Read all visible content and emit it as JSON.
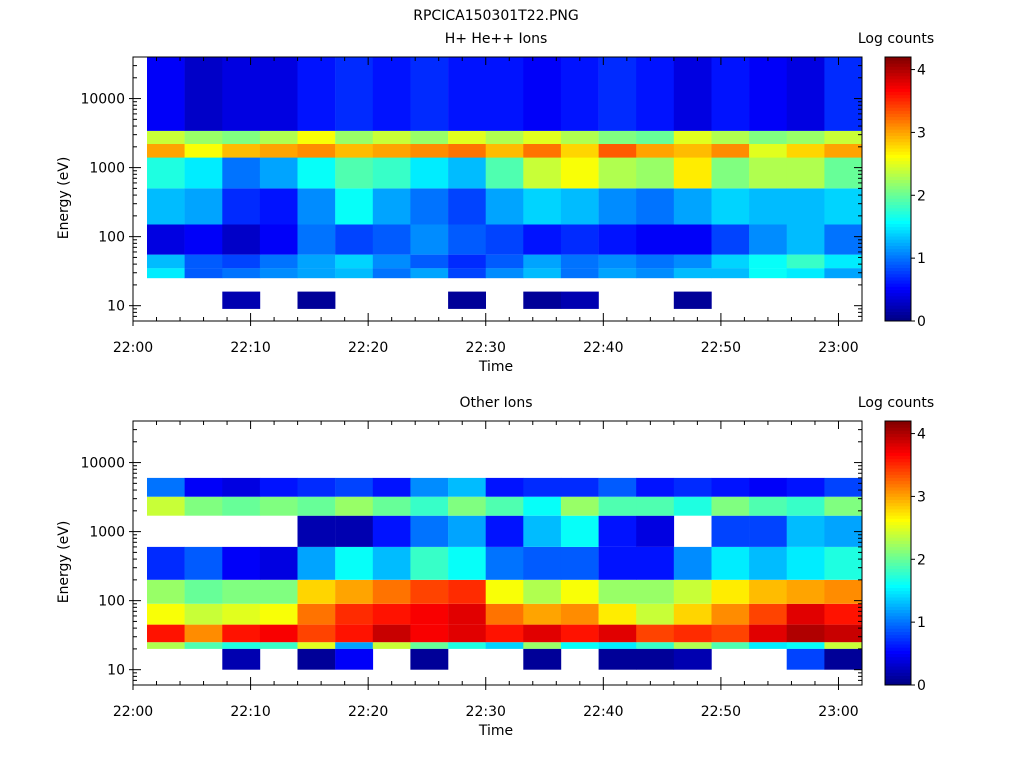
{
  "figure_title": "RPCICA150301T22.PNG",
  "chart_data": [
    {
      "type": "heatmap",
      "title": "H+ He++ Ions",
      "xlabel": "Time",
      "ylabel": "Energy (eV)",
      "y_scale": "log",
      "ylim": [
        6,
        40000
      ],
      "xlim": [
        "22:00",
        "23:02"
      ],
      "x_ticks": [
        "22:00",
        "22:10",
        "22:20",
        "22:30",
        "22:40",
        "22:50",
        "23:00"
      ],
      "y_ticks": [
        "10",
        "100",
        "1000",
        "10000"
      ],
      "colorbar": {
        "label": "Log counts",
        "range": [
          0,
          4.2
        ],
        "ticks": [
          "0",
          "1",
          "2",
          "3",
          "4"
        ]
      },
      "bands": [
        {
          "e_range": [
            25,
            35
          ],
          "values": [
            1.5,
            0.9,
            1.0,
            1.1,
            1.2,
            1.3,
            1.0,
            1.2,
            0.8,
            1.1,
            1.3,
            1.0,
            1.2,
            1.1,
            1.3,
            1.3,
            1.6,
            1.5,
            1.2
          ]
        },
        {
          "e_range": [
            35,
            55
          ],
          "values": [
            1.3,
            0.9,
            0.8,
            1.0,
            1.2,
            1.4,
            1.1,
            0.9,
            0.7,
            0.9,
            1.2,
            1.0,
            1.1,
            1.0,
            1.1,
            1.4,
            1.6,
            1.8,
            1.5
          ]
        },
        {
          "e_range": [
            55,
            150
          ],
          "values": [
            0.4,
            0.5,
            0.3,
            0.5,
            1.0,
            0.8,
            0.9,
            1.1,
            0.9,
            0.8,
            0.6,
            0.7,
            0.6,
            0.5,
            0.5,
            0.8,
            1.1,
            1.3,
            1.0
          ]
        },
        {
          "e_range": [
            150,
            500
          ],
          "values": [
            1.3,
            1.2,
            0.7,
            0.6,
            1.1,
            1.6,
            1.2,
            1.0,
            0.8,
            1.2,
            1.4,
            1.3,
            1.1,
            1.0,
            1.2,
            1.4,
            1.3,
            1.3,
            1.4
          ]
        },
        {
          "e_range": [
            500,
            1400
          ],
          "values": [
            1.7,
            1.5,
            1.0,
            1.2,
            1.6,
            1.9,
            1.8,
            1.5,
            1.3,
            1.9,
            2.4,
            2.6,
            2.3,
            2.2,
            2.7,
            2.1,
            2.3,
            2.3,
            2.0
          ]
        },
        {
          "e_range": [
            1400,
            2200
          ],
          "values": [
            3.0,
            2.6,
            2.9,
            3.0,
            3.1,
            2.9,
            3.0,
            3.1,
            3.2,
            2.9,
            3.2,
            2.8,
            3.3,
            3.0,
            2.9,
            3.1,
            2.5,
            2.8,
            3.0
          ]
        },
        {
          "e_range": [
            2200,
            3400
          ],
          "values": [
            2.4,
            2.2,
            2.1,
            2.3,
            2.6,
            2.2,
            2.4,
            2.2,
            2.5,
            2.3,
            2.5,
            2.3,
            2.1,
            2.0,
            2.5,
            2.3,
            2.1,
            2.2,
            2.4
          ]
        },
        {
          "e_range": [
            3400,
            40000
          ],
          "values": [
            0.5,
            0.3,
            0.4,
            0.4,
            0.6,
            0.7,
            0.6,
            0.7,
            0.6,
            0.6,
            0.5,
            0.6,
            0.7,
            0.6,
            0.4,
            0.6,
            0.5,
            0.4,
            0.7
          ]
        },
        {
          "e_range": [
            9,
            16
          ],
          "values": [
            null,
            null,
            0.2,
            null,
            0.1,
            null,
            null,
            null,
            0.1,
            null,
            0.1,
            0.2,
            null,
            null,
            0.1,
            null,
            null,
            null,
            null
          ]
        }
      ]
    },
    {
      "type": "heatmap",
      "title": "Other Ions",
      "xlabel": "Time",
      "ylabel": "Energy (eV)",
      "y_scale": "log",
      "ylim": [
        6,
        40000
      ],
      "xlim": [
        "22:00",
        "23:02"
      ],
      "x_ticks": [
        "22:00",
        "22:10",
        "22:20",
        "22:30",
        "22:40",
        "22:50",
        "23:00"
      ],
      "y_ticks": [
        "10",
        "100",
        "1000",
        "10000"
      ],
      "colorbar": {
        "label": "Log counts",
        "range": [
          0,
          4.2
        ],
        "ticks": [
          "0",
          "1",
          "2",
          "3",
          "4"
        ]
      },
      "bands": [
        {
          "e_range": [
            20,
            25
          ],
          "values": [
            2.3,
            1.9,
            1.7,
            1.8,
            2.5,
            1.2,
            2.4,
            2.0,
            1.7,
            1.4,
            2.2,
            1.6,
            1.5,
            1.8,
            2.3,
            1.9,
            1.5,
            1.6,
            2.4
          ]
        },
        {
          "e_range": [
            25,
            45
          ],
          "values": [
            3.6,
            3.1,
            3.6,
            3.7,
            3.4,
            3.6,
            3.9,
            3.7,
            3.8,
            3.6,
            3.8,
            3.6,
            3.8,
            3.4,
            3.5,
            3.4,
            3.8,
            4.0,
            3.9
          ]
        },
        {
          "e_range": [
            45,
            90
          ],
          "values": [
            2.6,
            2.4,
            2.5,
            2.6,
            3.2,
            3.5,
            3.6,
            3.7,
            3.8,
            3.2,
            3.0,
            3.1,
            2.7,
            2.4,
            2.8,
            3.1,
            3.4,
            3.8,
            3.6
          ]
        },
        {
          "e_range": [
            90,
            200
          ],
          "values": [
            2.2,
            2.0,
            2.1,
            2.1,
            2.8,
            3.0,
            3.2,
            3.4,
            3.5,
            2.6,
            2.3,
            2.6,
            2.2,
            2.2,
            2.4,
            2.7,
            2.9,
            3.0,
            3.1
          ]
        },
        {
          "e_range": [
            200,
            600
          ],
          "values": [
            0.7,
            0.9,
            0.5,
            0.4,
            1.2,
            1.6,
            1.3,
            1.8,
            1.6,
            1.0,
            0.9,
            0.9,
            0.6,
            0.6,
            1.1,
            1.5,
            1.3,
            1.5,
            1.7
          ]
        },
        {
          "e_range": [
            600,
            1700
          ],
          "values": [
            null,
            null,
            null,
            null,
            0.2,
            0.2,
            0.6,
            1.0,
            1.2,
            0.6,
            1.3,
            1.6,
            0.6,
            0.4,
            null,
            0.8,
            0.8,
            1.3,
            1.2
          ]
        },
        {
          "e_range": [
            1700,
            3200
          ],
          "values": [
            2.4,
            2.1,
            2.0,
            2.1,
            2.0,
            2.2,
            2.0,
            1.8,
            2.1,
            1.9,
            1.6,
            2.2,
            1.9,
            1.9,
            1.7,
            2.1,
            1.9,
            1.8,
            2.1
          ]
        },
        {
          "e_range": [
            3200,
            6000
          ],
          "values": [
            1.0,
            0.5,
            0.4,
            0.6,
            0.7,
            0.8,
            0.6,
            1.1,
            1.3,
            0.6,
            0.7,
            0.7,
            0.9,
            0.6,
            0.7,
            0.6,
            0.5,
            0.6,
            0.8
          ]
        },
        {
          "e_range": [
            10,
            20
          ],
          "values": [
            null,
            null,
            0.2,
            null,
            0.1,
            0.5,
            null,
            0.1,
            null,
            null,
            0.1,
            null,
            0.1,
            0.1,
            0.2,
            null,
            null,
            0.8,
            0.1
          ]
        }
      ]
    }
  ]
}
